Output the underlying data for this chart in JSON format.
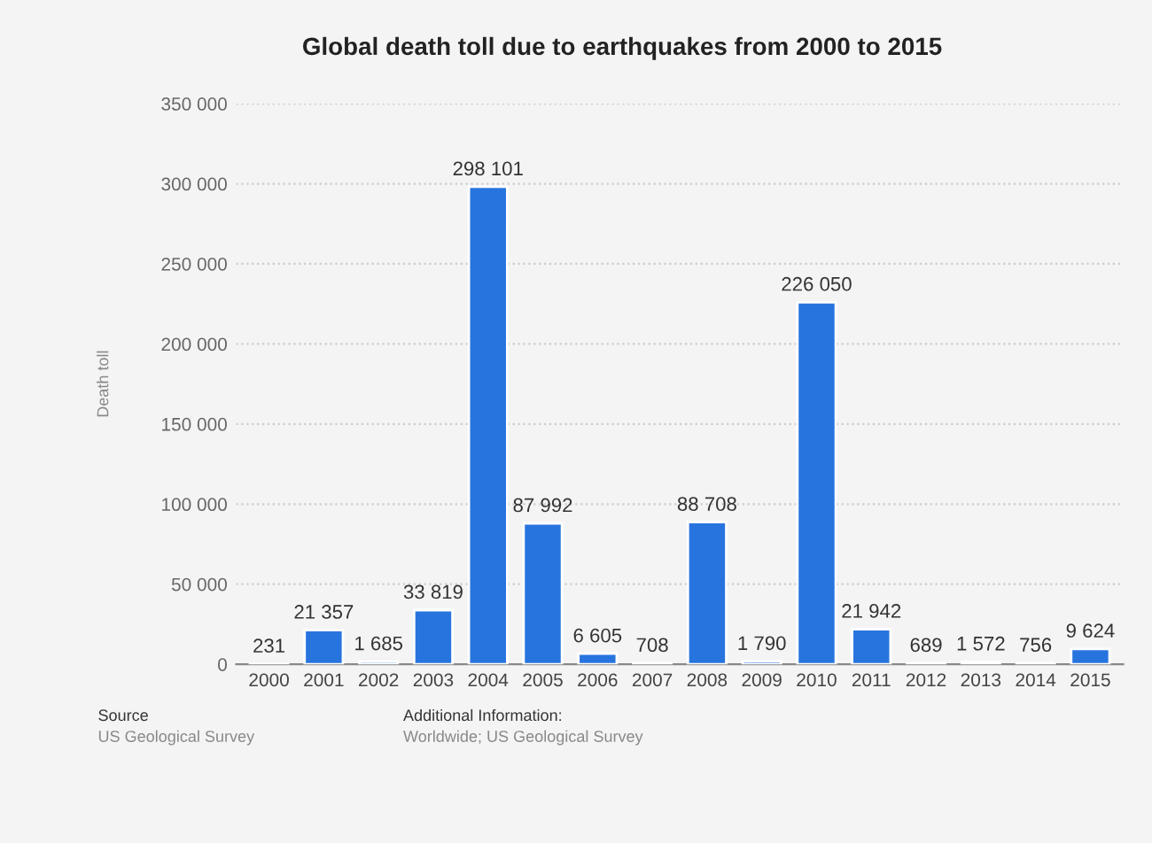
{
  "chart_data": {
    "type": "bar",
    "title": "Global death toll due to earthquakes from 2000 to 2015",
    "ylabel": "Death toll",
    "categories": [
      "2000",
      "2001",
      "2002",
      "2003",
      "2004",
      "2005",
      "2006",
      "2007",
      "2008",
      "2009",
      "2010",
      "2011",
      "2012",
      "2013",
      "2014",
      "2015"
    ],
    "values": [
      231,
      21357,
      1685,
      33819,
      298101,
      87992,
      6605,
      708,
      88708,
      1790,
      226050,
      21942,
      689,
      1572,
      756,
      9624
    ],
    "value_labels": [
      "231",
      "21 357",
      "1 685",
      "33 819",
      "298 101",
      "87 992",
      "6 605",
      "708",
      "88 708",
      "1 790",
      "226 050",
      "21 942",
      "689",
      "1 572",
      "756",
      "9 624"
    ],
    "color": "#2874de",
    "ylim": [
      0,
      350000
    ],
    "yticks": [
      0,
      {
        "value": 50000,
        "label": "50 000"
      },
      {
        "value": 100000,
        "label": "100 000"
      },
      {
        "value": 150000,
        "label": "150 000"
      },
      {
        "value": 200000,
        "label": "200 000"
      },
      {
        "value": 250000,
        "label": "250 000"
      },
      {
        "value": 300000,
        "label": "300 000"
      },
      {
        "value": 350000,
        "label": "350 000"
      }
    ],
    "grid": "y",
    "annotations": [
      "Source",
      "US Geological Survey",
      "Additional Information:",
      "Worldwide; US Geological Survey"
    ]
  }
}
